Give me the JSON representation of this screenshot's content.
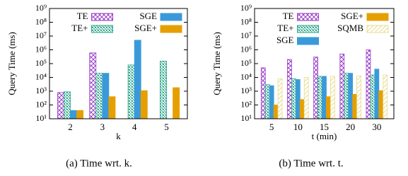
{
  "chart_data": [
    {
      "type": "bar",
      "caption": "(a) Time wrt. k.",
      "xlabel": "k",
      "ylabel": "Query Time (ms)",
      "log_y": true,
      "grid": false,
      "categories": [
        "2",
        "3",
        "4",
        "5"
      ],
      "series": [
        {
          "name": "TE",
          "color": "#9b3fc9",
          "hatch": "cross",
          "values": [
            800,
            600000,
            null,
            null
          ]
        },
        {
          "name": "TE+",
          "color": "#2aa58a",
          "hatch": "crosshatch",
          "values": [
            900,
            20000,
            80000,
            150000
          ]
        },
        {
          "name": "SGE",
          "color": "#3a9ad9",
          "hatch": "none",
          "values": [
            40,
            20000,
            5000000,
            null
          ]
        },
        {
          "name": "SGE+",
          "color": "#e69f00",
          "hatch": "none",
          "values": [
            40,
            400,
            1100,
            1800
          ]
        }
      ],
      "ylim": [
        10,
        1000000000
      ],
      "yticks": [
        {
          "value": 10,
          "label": "10¹"
        },
        {
          "value": 100,
          "label": "10²"
        },
        {
          "value": 1000,
          "label": "10³"
        },
        {
          "value": 10000,
          "label": "10⁴"
        },
        {
          "value": 100000,
          "label": "10⁵"
        },
        {
          "value": 1000000,
          "label": "10⁶"
        },
        {
          "value": 10000000,
          "label": "10⁷"
        },
        {
          "value": 100000000,
          "label": "10⁸"
        },
        {
          "value": 1000000000,
          "label": "10⁹"
        }
      ]
    },
    {
      "type": "bar",
      "caption": "(b) Time wrt. t.",
      "xlabel": "t (min)",
      "ylabel": "Query Time (ms)",
      "log_y": true,
      "grid": false,
      "categories": [
        "5",
        "10",
        "15",
        "20",
        "30"
      ],
      "series": [
        {
          "name": "TE",
          "color": "#9b3fc9",
          "hatch": "cross",
          "values": [
            50000,
            200000,
            300000,
            500000,
            1000000
          ]
        },
        {
          "name": "TE+",
          "color": "#2aa58a",
          "hatch": "crosshatch",
          "values": [
            3000,
            8000,
            12000,
            20000,
            15000
          ]
        },
        {
          "name": "SGE",
          "color": "#3a9ad9",
          "hatch": "none",
          "values": [
            2500,
            7000,
            12000,
            20000,
            40000
          ]
        },
        {
          "name": "SGE+",
          "color": "#e69f00",
          "hatch": "none",
          "values": [
            100,
            250,
            400,
            600,
            1100
          ]
        },
        {
          "name": "SQMB",
          "color": "#e8dc8c",
          "hatch": "diagonal",
          "values": [
            8000,
            10000,
            12000,
            13000,
            15000
          ]
        }
      ],
      "ylim": [
        10,
        1000000000
      ],
      "yticks": [
        {
          "value": 10,
          "label": "10¹"
        },
        {
          "value": 100,
          "label": "10²"
        },
        {
          "value": 1000,
          "label": "10³"
        },
        {
          "value": 10000,
          "label": "10⁴"
        },
        {
          "value": 100000,
          "label": "10⁵"
        },
        {
          "value": 1000000,
          "label": "10⁶"
        },
        {
          "value": 10000000,
          "label": "10⁷"
        },
        {
          "value": 100000000,
          "label": "10⁸"
        },
        {
          "value": 1000000000,
          "label": "10⁹"
        }
      ]
    }
  ]
}
